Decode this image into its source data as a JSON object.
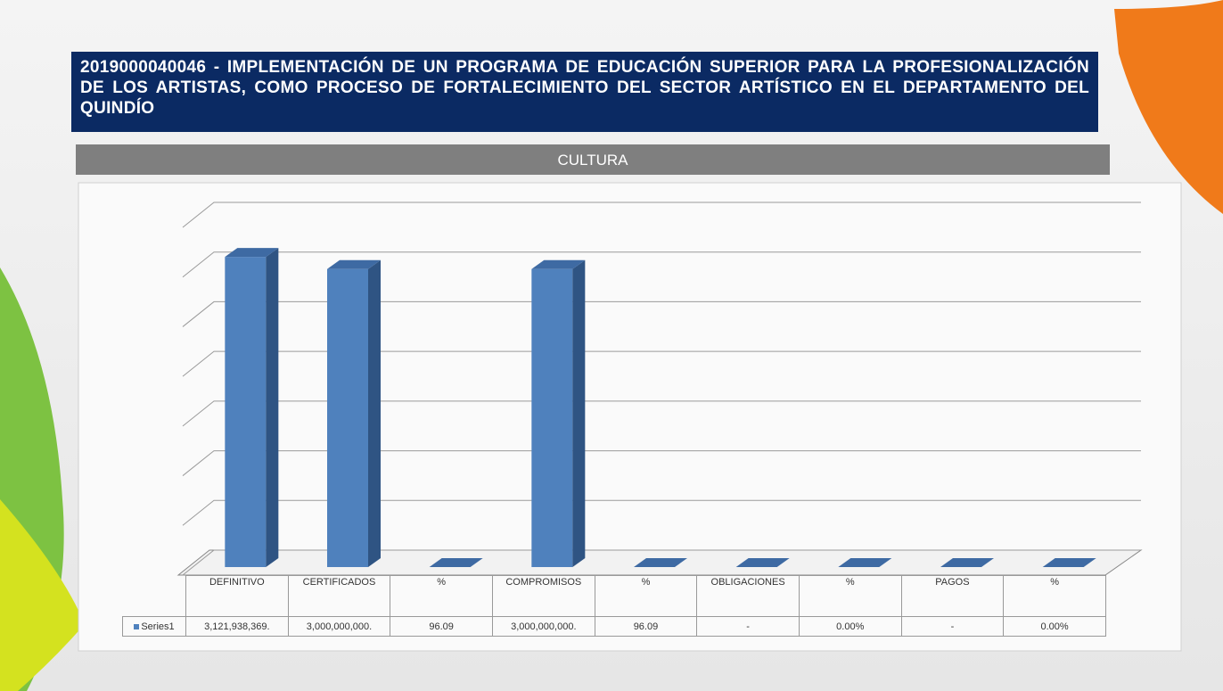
{
  "chart_data": {
    "type": "bar",
    "title": "2019000040046 - IMPLEMENTACIÓN DE UN PROGRAMA DE EDUCACIÓN SUPERIOR PARA LA PROFESIONALIZACIÓN DE LOS ARTISTAS, COMO PROCESO DE FORTALECIMIENTO DEL SECTOR ARTÍSTICO EN EL DEPARTAMENTO DEL QUINDÍO",
    "subtitle": "CULTURA",
    "categories": [
      "DEFINITIVO",
      "CERTIFICADOS",
      "%",
      "COMPROMISOS",
      "%",
      "OBLIGACIONES",
      "%",
      "PAGOS",
      "%"
    ],
    "series": [
      {
        "name": "Series1",
        "color": "#4f81bd",
        "values": [
          3121938369,
          3000000000,
          96.09,
          3000000000,
          96.09,
          0,
          0,
          0,
          0
        ],
        "value_labels": [
          "3,121,938,369.",
          "3,000,000,000.",
          "96.09",
          "3,000,000,000.",
          "96.09",
          "-",
          "0.00%",
          "-",
          "0.00%"
        ]
      }
    ],
    "ylim": [
      0,
      3500000000
    ],
    "yticks": [
      0,
      500000000,
      1000000000,
      1500000000,
      2000000000,
      2500000000,
      3000000000,
      3500000000
    ],
    "grid": true
  }
}
